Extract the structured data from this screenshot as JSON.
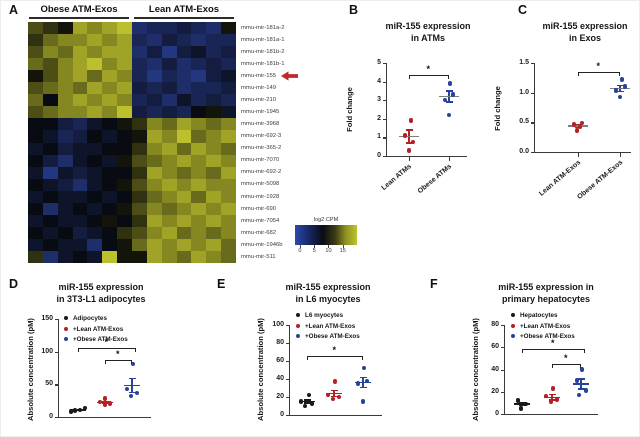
{
  "figure": {
    "colors": {
      "red": "#b32025",
      "blue": "#28439c",
      "black": "#1a1a1a",
      "gray_mean": "#7f7f7f",
      "axis": "#3a3a3a",
      "arrow_red": "#c1272d",
      "heat_blue": "#2e49ae",
      "heat_black": "#070708",
      "heat_yellow": "#d9dd33"
    }
  },
  "chart_data": [
    {
      "panel": "A",
      "type": "heatmap",
      "col_groups": [
        "Obese ATM-Exos",
        "Lean ATM-Exos"
      ],
      "cols_per_group": 7,
      "rows": [
        "mmu-mir-181a-2",
        "mmu-mir-181a-1",
        "mmu-mir-181b-2",
        "mmu-mir-181b-1",
        "mmu-mir-155",
        "mmu-mir-149",
        "mmu-mir-210",
        "mmu-mir-1945",
        "mmu-mir-3968",
        "mmu-mir-692-3",
        "mmu-mir-365-2",
        "mmu-mir-7070",
        "mmu-mir-692-2",
        "mmu-mir-5098",
        "mmu-mir-1928",
        "mmu-mir-690",
        "mmu-mir-7054",
        "mmu-mir-682",
        "mmu-mir-1946b",
        "mmu-mir-511"
      ],
      "highlight_row": "mmu-mir-155",
      "matrix": [
        [
          10,
          9,
          8,
          13,
          12,
          13,
          14,
          3,
          4,
          4,
          5,
          4,
          3,
          8
        ],
        [
          9,
          11,
          12,
          12,
          13,
          12,
          13,
          4,
          3,
          5,
          4,
          3,
          4,
          4
        ],
        [
          10,
          12,
          11,
          13,
          12,
          13,
          13,
          3,
          5,
          2,
          5,
          6,
          4,
          5
        ],
        [
          11,
          10,
          12,
          13,
          14,
          12,
          13,
          4,
          3,
          5,
          3,
          4,
          5,
          4
        ],
        [
          8,
          10,
          12,
          13,
          11,
          13,
          12,
          4,
          2,
          4,
          3,
          2,
          5,
          6
        ],
        [
          10,
          11,
          12,
          11,
          13,
          12,
          13,
          5,
          4,
          5,
          3,
          4,
          4,
          5
        ],
        [
          11,
          7,
          12,
          13,
          12,
          13,
          12,
          4,
          5,
          3,
          6,
          4,
          5,
          4
        ],
        [
          10,
          11,
          12,
          12,
          13,
          12,
          14,
          5,
          4,
          5,
          4,
          7,
          8,
          6
        ],
        [
          7,
          7,
          5,
          4,
          6,
          7,
          8,
          9,
          12,
          11,
          13,
          12,
          11,
          12
        ],
        [
          7,
          6,
          4,
          5,
          7,
          6,
          7,
          8,
          13,
          12,
          14,
          11,
          12,
          13
        ],
        [
          6,
          7,
          5,
          6,
          6,
          7,
          7,
          9,
          12,
          13,
          11,
          13,
          12,
          11
        ],
        [
          7,
          5,
          3,
          6,
          7,
          6,
          8,
          10,
          11,
          12,
          13,
          12,
          13,
          12
        ],
        [
          6,
          2,
          6,
          5,
          6,
          7,
          7,
          9,
          13,
          12,
          11,
          12,
          11,
          13
        ],
        [
          7,
          6,
          5,
          3,
          6,
          7,
          8,
          10,
          12,
          13,
          12,
          13,
          12,
          12
        ],
        [
          6,
          7,
          6,
          6,
          7,
          6,
          7,
          9,
          11,
          12,
          13,
          11,
          13,
          12
        ],
        [
          7,
          3,
          6,
          7,
          6,
          7,
          8,
          10,
          12,
          11,
          12,
          13,
          12,
          13
        ],
        [
          6,
          7,
          6,
          6,
          7,
          8,
          7,
          9,
          13,
          12,
          13,
          12,
          13,
          12
        ],
        [
          7,
          6,
          7,
          5,
          6,
          7,
          9,
          10,
          12,
          13,
          11,
          12,
          11,
          12
        ],
        [
          6,
          7,
          6,
          6,
          3,
          7,
          8,
          11,
          13,
          12,
          13,
          12,
          13,
          11
        ],
        [
          9,
          3,
          6,
          7,
          6,
          14,
          8,
          8,
          13,
          12,
          11,
          13,
          12,
          11
        ]
      ],
      "scale": {
        "label": "log2 CPM",
        "min": 0,
        "max": 15,
        "ticks": [
          "0",
          "5",
          "10",
          "15"
        ]
      }
    },
    {
      "panel": "B",
      "type": "scatter",
      "title_lines": [
        "miR-155 expression",
        "in ATMs"
      ],
      "ylabel": "Fold change",
      "ylim": [
        0,
        5
      ],
      "yticks": [
        "0",
        "1",
        "2",
        "3",
        "4",
        "5"
      ],
      "mean_style": "gray",
      "groups": [
        {
          "label": "Lean ATMs",
          "color": "#b32025",
          "points": [
            [
              1.9,
              2
            ],
            [
              1.1,
              -4
            ],
            [
              0.75,
              4
            ],
            [
              0.3,
              0
            ]
          ],
          "mean": 1.05,
          "sem": 0.38
        },
        {
          "label": "Obese ATMs",
          "color": "#28439c",
          "points": [
            [
              3.9,
              1
            ],
            [
              3.3,
              4
            ],
            [
              3.0,
              -4
            ],
            [
              2.2,
              0
            ]
          ],
          "mean": 3.2,
          "sem": 0.33
        }
      ],
      "brackets": [
        {
          "a": 0,
          "b": 1,
          "y": 4.35,
          "bo": 0,
          "star": "*"
        }
      ]
    },
    {
      "panel": "C",
      "type": "scatter",
      "title_lines": [
        "miR-155 expression",
        "in Exos"
      ],
      "ylabel": "Fold change",
      "ylim": [
        0,
        1.5
      ],
      "yticks": [
        "0.0",
        "0.5",
        "1.0",
        "1.5"
      ],
      "mean_style": "gray",
      "groups": [
        {
          "label": "Lean ATM-Exos",
          "color": "#b32025",
          "points": [
            [
              0.49,
              4
            ],
            [
              0.46,
              -4
            ],
            [
              0.42,
              2
            ],
            [
              0.36,
              -1
            ]
          ],
          "mean": 0.44,
          "sem": 0.035
        },
        {
          "label": "Obese ATM-Exos",
          "color": "#28439c",
          "points": [
            [
              1.22,
              2
            ],
            [
              1.1,
              5
            ],
            [
              1.04,
              -4
            ],
            [
              0.93,
              0
            ]
          ],
          "mean": 1.07,
          "sem": 0.06
        }
      ],
      "brackets": [
        {
          "a": 0,
          "b": 1,
          "y": 1.35,
          "bo": 0,
          "star": "*"
        }
      ]
    },
    {
      "panel": "D",
      "type": "scatter",
      "title_lines": [
        "miR-155 expression",
        "in 3T3-L1 adipocytes"
      ],
      "ylabel": "Absolute concentration (pM)",
      "ylim": [
        0,
        150
      ],
      "yticks": [
        "0",
        "50",
        "100",
        "150"
      ],
      "mean_style": "group",
      "legend": [
        "Adipocytes",
        "+Lean ATM-Exos",
        "+Obese ATM-Exos"
      ],
      "groups": [
        {
          "label": "Adipocytes",
          "color": "#1a1a1a",
          "points": [
            [
              14,
              7
            ],
            [
              11,
              2
            ],
            [
              10,
              -3
            ],
            [
              8,
              -7
            ]
          ],
          "mean": 11,
          "sem": 1.5
        },
        {
          "label": "+Lean ATM-Exos",
          "color": "#b32025",
          "points": [
            [
              28,
              0
            ],
            [
              23,
              -5
            ],
            [
              21,
              5
            ],
            [
              19,
              0
            ]
          ],
          "mean": 22.5,
          "sem": 2.5
        },
        {
          "label": "+Obese ATM-Exos",
          "color": "#28439c",
          "points": [
            [
              81,
              1
            ],
            [
              43,
              -5
            ],
            [
              37,
              5
            ],
            [
              32,
              -1
            ]
          ],
          "mean": 48,
          "sem": 12
        }
      ],
      "brackets": [
        {
          "a": 0,
          "b": 2,
          "y": 105,
          "bo": 4,
          "star": "*"
        },
        {
          "a": 1,
          "b": 2,
          "y": 88,
          "bo": 0,
          "star": "*"
        }
      ]
    },
    {
      "panel": "E",
      "type": "scatter",
      "title_lines": [
        "miR-155 expression",
        "in L6 myocytes"
      ],
      "ylabel": "Absolute concentration (pM)",
      "ylim": [
        0,
        100
      ],
      "yticks": [
        "0",
        "20",
        "40",
        "60",
        "80",
        "100"
      ],
      "mean_style": "group",
      "legend": [
        "L6 myocytes",
        "+Lean ATM-Exos",
        "+Obese ATM-Exos"
      ],
      "groups": [
        {
          "label": "L6 myocytes",
          "color": "#1a1a1a",
          "points": [
            [
              22,
              2
            ],
            [
              15,
              -6
            ],
            [
              13,
              5
            ],
            [
              10,
              -2
            ]
          ],
          "mean": 15,
          "sem": 2.5
        },
        {
          "label": "+Lean ATM-Exos",
          "color": "#b32025",
          "points": [
            [
              37,
              1
            ],
            [
              22,
              -6
            ],
            [
              20,
              5
            ],
            [
              18,
              -1
            ]
          ],
          "mean": 24,
          "sem": 4
        },
        {
          "label": "+Obese ATM-Exos",
          "color": "#28439c",
          "points": [
            [
              52,
              1
            ],
            [
              38,
              4
            ],
            [
              35,
              -5
            ],
            [
              15,
              0
            ]
          ],
          "mean": 36,
          "sem": 6
        }
      ],
      "brackets": [
        {
          "a": 0,
          "b": 2,
          "y": 66,
          "bo": 0,
          "star": "*"
        }
      ]
    },
    {
      "panel": "F",
      "type": "scatter",
      "title_lines": [
        "miR-155 expression in",
        "primary hepatocytes"
      ],
      "ylabel": "Absolute concentration (pM)",
      "ylim": [
        0,
        80
      ],
      "yticks": [
        "0",
        "20",
        "40",
        "60",
        "80"
      ],
      "mean_style": "group",
      "legend": [
        "Hepatocytes",
        "+Lean ATM-Exos",
        "+Obese ATM-Exos"
      ],
      "groups": [
        {
          "label": "Hepatocytes",
          "color": "#1a1a1a",
          "points": [
            [
              12,
              -4
            ],
            [
              9,
              4
            ],
            [
              5,
              -1
            ]
          ],
          "mean": 9,
          "sem": 2
        },
        {
          "label": "+Lean ATM-Exos",
          "color": "#b32025",
          "points": [
            [
              23,
              1
            ],
            [
              16,
              -6
            ],
            [
              13,
              5
            ],
            [
              11,
              -1
            ]
          ],
          "mean": 15,
          "sem": 3
        },
        {
          "label": "+Obese ATM-Exos",
          "color": "#28439c",
          "points": [
            [
              40,
              1
            ],
            [
              30,
              -4
            ],
            [
              21,
              5
            ],
            [
              17,
              -2
            ]
          ],
          "mean": 27,
          "sem": 5
        }
      ],
      "brackets": [
        {
          "a": 0,
          "b": 2,
          "y": 58,
          "bo": 4,
          "star": "*"
        },
        {
          "a": 1,
          "b": 2,
          "y": 45,
          "bo": 0,
          "star": "*"
        }
      ]
    }
  ]
}
